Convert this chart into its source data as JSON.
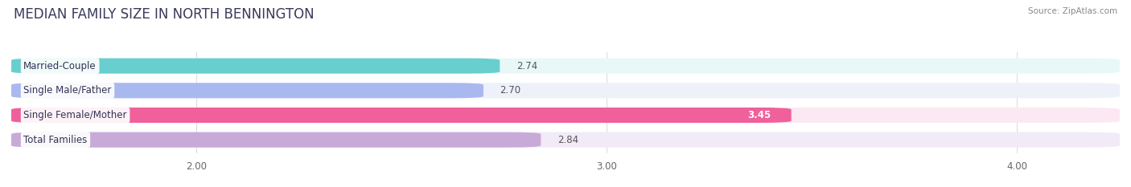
{
  "title": "MEDIAN FAMILY SIZE IN NORTH BENNINGTON",
  "source": "Source: ZipAtlas.com",
  "categories": [
    "Married-Couple",
    "Single Male/Father",
    "Single Female/Mother",
    "Total Families"
  ],
  "values": [
    2.74,
    2.7,
    3.45,
    2.84
  ],
  "bar_colors": [
    "#68cece",
    "#aab8f0",
    "#f0609a",
    "#c8aad8"
  ],
  "bar_bg_colors": [
    "#e8f8f8",
    "#eef0fa",
    "#fce8f2",
    "#f2eaf6"
  ],
  "xmin": 1.55,
  "xmax": 4.25,
  "xticks": [
    2.0,
    3.0,
    4.0
  ],
  "xtick_labels": [
    "2.00",
    "3.00",
    "4.00"
  ],
  "label_fontsize": 8.5,
  "title_fontsize": 12,
  "value_fontsize": 8.5,
  "value_color_inside": "#ffffff",
  "value_color_outside": "#555555",
  "background_color": "#ffffff",
  "grid_color": "#dddddd",
  "title_color": "#3a3a5a"
}
